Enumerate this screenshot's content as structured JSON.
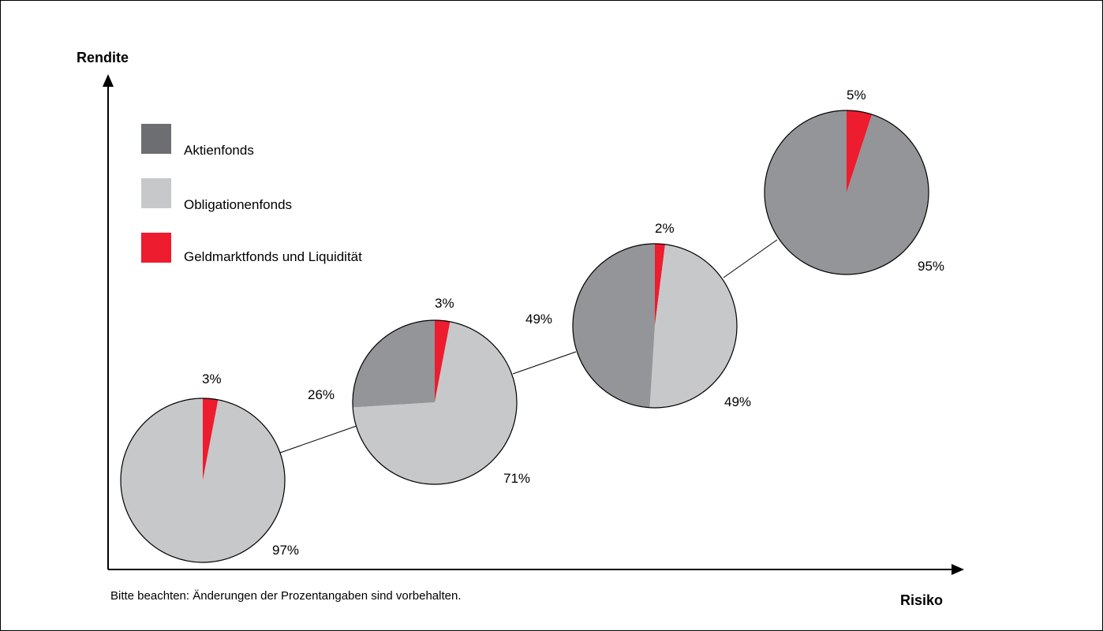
{
  "chart_data": {
    "type": "pie",
    "xlabel": "Risiko",
    "ylabel": "Rendite",
    "note": "Bitte beachten: Änderungen der Prozentangaben sind vorbehalten.",
    "legend_position": "top-left",
    "series": [
      {
        "name": "Aktienfonds",
        "color": "#939598"
      },
      {
        "name": "Obligationenfonds",
        "color": "#c7c8ca"
      },
      {
        "name": "Geldmarktfonds und Liquidität",
        "color": "#ed1c2e"
      }
    ],
    "pies": [
      {
        "values": [
          0,
          97,
          3
        ],
        "labels": {
          "aktien": "",
          "obligationen": "97%",
          "geldmarkt": "3%"
        }
      },
      {
        "values": [
          26,
          71,
          3
        ],
        "labels": {
          "aktien": "26%",
          "obligationen": "71%",
          "geldmarkt": "3%"
        }
      },
      {
        "values": [
          49,
          49,
          2
        ],
        "labels": {
          "aktien": "49%",
          "obligationen": "49%",
          "geldmarkt": "2%"
        }
      },
      {
        "values": [
          95,
          0,
          5
        ],
        "labels": {
          "aktien": "95%",
          "obligationen": "",
          "geldmarkt": "5%"
        }
      }
    ]
  }
}
